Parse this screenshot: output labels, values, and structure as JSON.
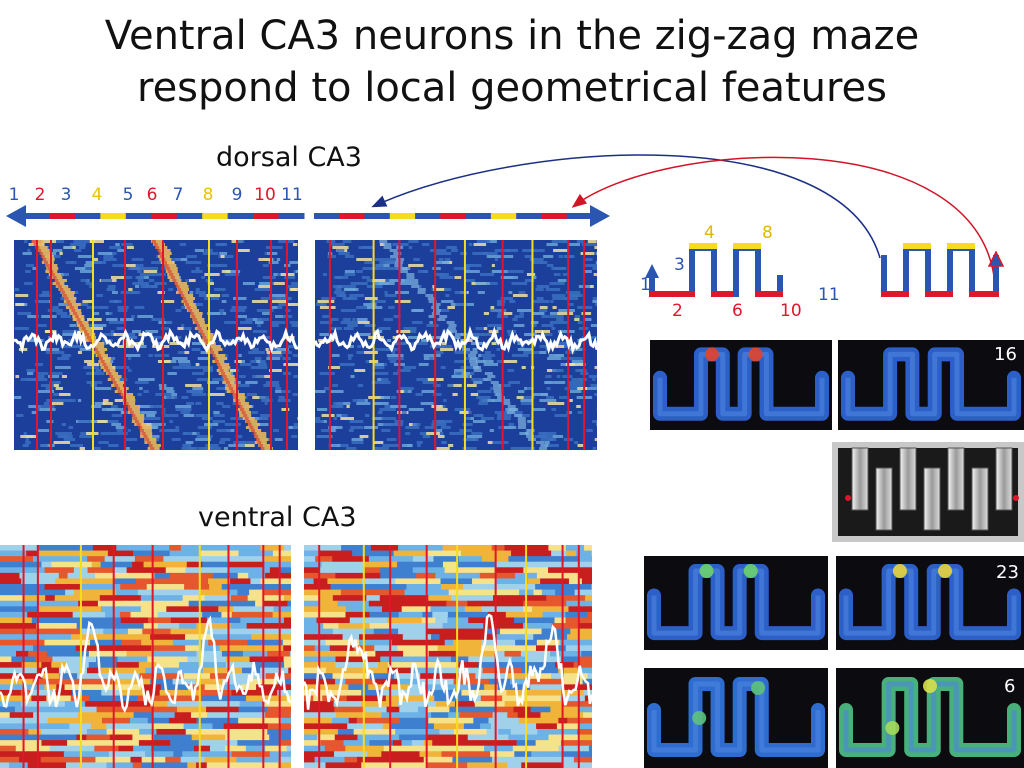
{
  "slide": {
    "title_line1": "Ventral CA3 neurons in the zig-zag maze",
    "title_line2": "respond to local geometrical features",
    "dorsal_label": "dorsal CA3",
    "ventral_label": "ventral CA3"
  },
  "segment_numbers": [
    "1",
    "2",
    "3",
    "4",
    "5",
    "6",
    "7",
    "8",
    "9",
    "10",
    "11"
  ],
  "segment_colors": [
    "blue",
    "red",
    "blue",
    "yellow",
    "blue",
    "red",
    "blue",
    "yellow",
    "blue",
    "red",
    "blue"
  ],
  "maze_schematic": {
    "numbers_top": [
      "4",
      "8"
    ],
    "numbers_left": [
      "1",
      "3"
    ],
    "numbers_bottom": [
      "2",
      "6",
      "10"
    ],
    "number_right": "11"
  },
  "rate_map_counts": [
    "16",
    "23",
    "6"
  ],
  "colors": {
    "blue": "#2a55b0",
    "red": "#e0162b",
    "yellow": "#f6dc1c",
    "heat_bg": "#1d3f9c",
    "ventral_bg": "#f1d84a",
    "arrow_blue": "#1c2f86",
    "arrow_red": "#d11426"
  }
}
